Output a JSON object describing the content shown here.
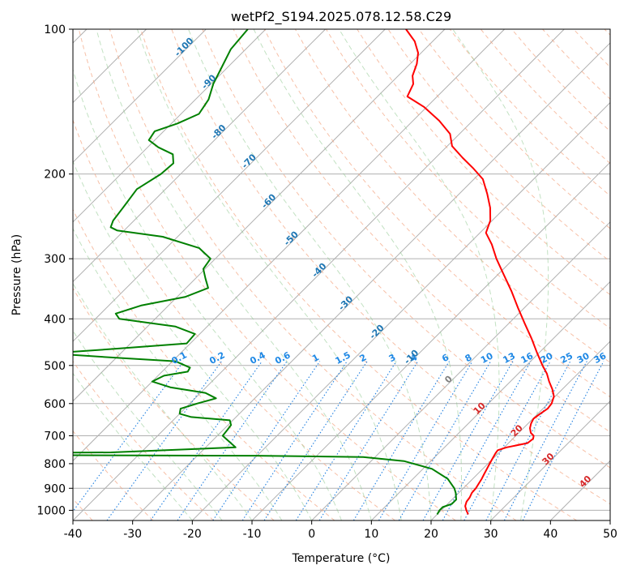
{
  "chart_data": {
    "type": "line",
    "title": "wetPf2_S194.2025.078.12.58.C29",
    "xlabel": "Temperature (°C)",
    "ylabel": "Pressure (hPa)",
    "xlim": [
      -40,
      50
    ],
    "ylim": [
      1050,
      100
    ],
    "y_scale": "log",
    "x_ticks": [
      -40,
      -30,
      -20,
      -10,
      0,
      10,
      20,
      30,
      40,
      50
    ],
    "y_ticks": [
      100,
      200,
      300,
      400,
      500,
      600,
      700,
      800,
      900,
      1000
    ],
    "grid": "horizontal at pressure ticks + skewed isotherms",
    "skew_factor": 35,
    "background_lines": {
      "isotherms_C": [
        -120,
        -110,
        -100,
        -90,
        -80,
        -70,
        -60,
        -50,
        -40,
        -30,
        -20,
        -10,
        0,
        10,
        20,
        30,
        40,
        50
      ],
      "dry_adiabats_C": [
        -40,
        -30,
        -20,
        -10,
        0,
        10,
        20,
        30,
        40,
        50,
        60,
        70,
        80,
        90,
        100,
        110,
        120,
        130,
        140,
        150,
        160,
        170,
        180,
        190,
        200
      ],
      "moist_adiabats_C": [
        -20,
        -15,
        -10,
        -5,
        0,
        5,
        10,
        15,
        20,
        25,
        30,
        35
      ],
      "mixing_ratios_gkg": [
        0.1,
        0.2,
        0.4,
        0.6,
        1,
        1.5,
        2,
        3,
        4,
        6,
        8,
        10,
        13,
        16,
        20,
        25,
        30,
        36
      ],
      "mixing_ratio_labels": [
        "0.1",
        "0.2",
        "0.4",
        "0.6",
        "1",
        "1.5",
        "2",
        "3",
        "4",
        "6",
        "8",
        "10",
        "13",
        "16",
        "20",
        "25",
        "30",
        "36"
      ]
    },
    "isotherm_labels": [
      {
        "text": "-100",
        "T": -100,
        "p": 110,
        "color": "#1f77b4"
      },
      {
        "text": "-90",
        "T": -90,
        "p": 130,
        "color": "#1f77b4"
      },
      {
        "text": "-80",
        "T": -80,
        "p": 165,
        "color": "#1f77b4"
      },
      {
        "text": "-70",
        "T": -70,
        "p": 190,
        "color": "#1f77b4"
      },
      {
        "text": "-60",
        "T": -60,
        "p": 230,
        "color": "#1f77b4"
      },
      {
        "text": "-50",
        "T": -50,
        "p": 275,
        "color": "#1f77b4"
      },
      {
        "text": "-40",
        "T": -40,
        "p": 320,
        "color": "#1f77b4"
      },
      {
        "text": "-30",
        "T": -30,
        "p": 375,
        "color": "#1f77b4"
      },
      {
        "text": "-20",
        "T": -20,
        "p": 430,
        "color": "#1f77b4"
      },
      {
        "text": "-10",
        "T": -10,
        "p": 485,
        "color": "#1f77b4"
      },
      {
        "text": "0",
        "T": 0,
        "p": 540,
        "color": "#7f7f7f"
      },
      {
        "text": "10",
        "T": 10,
        "p": 620,
        "color": "#d62728"
      },
      {
        "text": "20",
        "T": 20,
        "p": 690,
        "color": "#d62728"
      },
      {
        "text": "30",
        "T": 30,
        "p": 790,
        "color": "#d62728"
      },
      {
        "text": "40",
        "T": 40,
        "p": 880,
        "color": "#d62728"
      }
    ],
    "series": [
      {
        "name": "Temperature",
        "color": "#ff0000",
        "points": [
          [
            1020,
            25.2
          ],
          [
            1000,
            24.2
          ],
          [
            980,
            23.3
          ],
          [
            960,
            22.8
          ],
          [
            940,
            22.6
          ],
          [
            920,
            22.2
          ],
          [
            900,
            22.1
          ],
          [
            880,
            21.8
          ],
          [
            860,
            21.5
          ],
          [
            840,
            21.1
          ],
          [
            820,
            20.7
          ],
          [
            800,
            20.3
          ],
          [
            780,
            19.9
          ],
          [
            760,
            19.5
          ],
          [
            750,
            19.4
          ],
          [
            740,
            20.4
          ],
          [
            725,
            23.2
          ],
          [
            710,
            23.4
          ],
          [
            700,
            23.0
          ],
          [
            690,
            22.0
          ],
          [
            675,
            21.1
          ],
          [
            660,
            20.5
          ],
          [
            645,
            20.1
          ],
          [
            630,
            20.4
          ],
          [
            615,
            20.8
          ],
          [
            600,
            20.6
          ],
          [
            580,
            19.8
          ],
          [
            560,
            18.3
          ],
          [
            540,
            16.5
          ],
          [
            520,
            14.8
          ],
          [
            500,
            12.7
          ],
          [
            470,
            9.6
          ],
          [
            440,
            6.4
          ],
          [
            410,
            2.8
          ],
          [
            380,
            -1.0
          ],
          [
            350,
            -5.0
          ],
          [
            320,
            -9.6
          ],
          [
            300,
            -12.9
          ],
          [
            280,
            -16.1
          ],
          [
            265,
            -19.0
          ],
          [
            250,
            -20.3
          ],
          [
            235,
            -22.5
          ],
          [
            220,
            -25.3
          ],
          [
            205,
            -28.5
          ],
          [
            195,
            -31.8
          ],
          [
            185,
            -35.5
          ],
          [
            175,
            -39.2
          ],
          [
            165,
            -41.6
          ],
          [
            155,
            -45.6
          ],
          [
            145,
            -50.5
          ],
          [
            138,
            -55.0
          ],
          [
            130,
            -56.1
          ],
          [
            125,
            -57.6
          ],
          [
            118,
            -58.9
          ],
          [
            112,
            -60.5
          ],
          [
            106,
            -63.0
          ],
          [
            100,
            -66.5
          ]
        ]
      },
      {
        "name": "Dewpoint",
        "color": "#008000",
        "points": [
          [
            1020,
            20.0
          ],
          [
            1000,
            19.7
          ],
          [
            985,
            19.7
          ],
          [
            970,
            20.7
          ],
          [
            950,
            20.7
          ],
          [
            920,
            19.5
          ],
          [
            900,
            18.5
          ],
          [
            860,
            15.8
          ],
          [
            820,
            11.5
          ],
          [
            790,
            5.5
          ],
          [
            775,
            -2.0
          ],
          [
            770,
            -20.0
          ],
          [
            768,
            -60.0
          ],
          [
            760,
            -60.0
          ],
          [
            758,
            -45.0
          ],
          [
            740,
            -25.0
          ],
          [
            700,
            -29.1
          ],
          [
            680,
            -29.3
          ],
          [
            665,
            -29.5
          ],
          [
            650,
            -30.5
          ],
          [
            640,
            -37.5
          ],
          [
            630,
            -40.0
          ],
          [
            615,
            -40.7
          ],
          [
            600,
            -38.8
          ],
          [
            585,
            -36.5
          ],
          [
            570,
            -39.2
          ],
          [
            555,
            -46.0
          ],
          [
            540,
            -50.0
          ],
          [
            525,
            -49.0
          ],
          [
            515,
            -45.7
          ],
          [
            505,
            -46.0
          ],
          [
            490,
            -49.5
          ],
          [
            482,
            -60.0
          ],
          [
            475,
            -68.0
          ],
          [
            470,
            -70.0
          ],
          [
            462,
            -62.0
          ],
          [
            450,
            -50.6
          ],
          [
            430,
            -50.8
          ],
          [
            415,
            -55.3
          ],
          [
            400,
            -66.0
          ],
          [
            390,
            -67.5
          ],
          [
            375,
            -64.5
          ],
          [
            360,
            -58.6
          ],
          [
            345,
            -56.3
          ],
          [
            330,
            -58.3
          ],
          [
            315,
            -60.3
          ],
          [
            300,
            -60.8
          ],
          [
            285,
            -64.5
          ],
          [
            270,
            -72.5
          ],
          [
            262,
            -81.2
          ],
          [
            258,
            -82.8
          ],
          [
            250,
            -83.5
          ],
          [
            235,
            -84.0
          ],
          [
            215,
            -84.8
          ],
          [
            200,
            -83.3
          ],
          [
            190,
            -83.0
          ],
          [
            182,
            -84.6
          ],
          [
            176,
            -88.2
          ],
          [
            170,
            -91.0
          ],
          [
            163,
            -91.5
          ],
          [
            157,
            -89.0
          ],
          [
            150,
            -87.0
          ],
          [
            140,
            -87.8
          ],
          [
            130,
            -89.6
          ],
          [
            120,
            -91.0
          ],
          [
            110,
            -92.5
          ],
          [
            100,
            -93.0
          ]
        ]
      }
    ]
  }
}
